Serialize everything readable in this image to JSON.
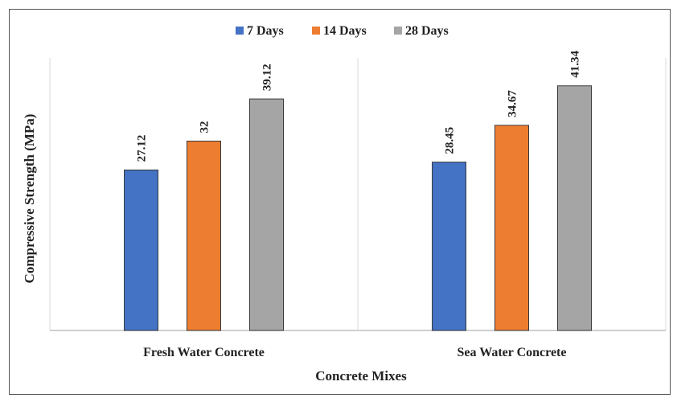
{
  "chart_data": {
    "type": "bar",
    "title": "",
    "xlabel": "Concrete Mixes",
    "ylabel": "Compressive Strength (MPa)",
    "categories": [
      "Fresh Water Concrete",
      "Sea Water Concrete"
    ],
    "series": [
      {
        "name": "7 Days",
        "color": "#4472c4",
        "values": [
          27.12,
          28.45
        ]
      },
      {
        "name": "14 Days",
        "color": "#ed7d31",
        "values": [
          32,
          34.67
        ]
      },
      {
        "name": "28 Days",
        "color": "#a5a5a5",
        "values": [
          39.12,
          41.34
        ]
      }
    ],
    "data_labels": [
      [
        "27.12",
        "28.45"
      ],
      [
        "32",
        "34.67"
      ],
      [
        "39.12",
        "41.34"
      ]
    ],
    "ylim": [
      0,
      47
    ],
    "grid": false,
    "legend_position": "top"
  }
}
